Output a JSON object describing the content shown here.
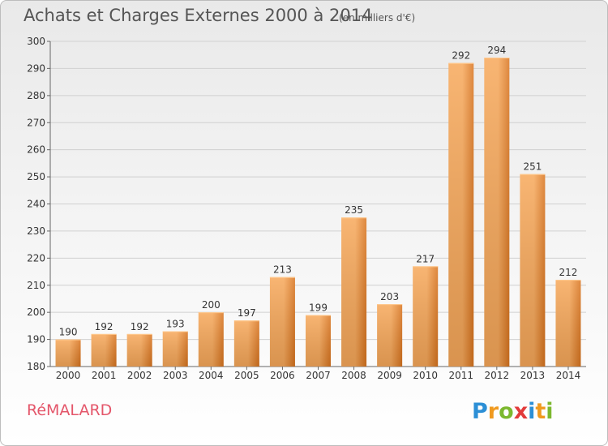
{
  "header": {
    "title": "Achats et Charges Externes 2000 à 2014",
    "subtitle": "(en milliers d'€)"
  },
  "footer": {
    "town": "RéMALARD",
    "logo": "Proxiti"
  },
  "colors": {
    "bar_light": "#f7a85a",
    "bar_dark": "#d9741e",
    "town": "#e4566a",
    "grid": "#d0d0d0"
  },
  "chart_data": {
    "type": "bar",
    "title": "Achats et Charges Externes 2000 à 2014",
    "subtitle": "(en milliers d'€)",
    "categories": [
      "2000",
      "2001",
      "2002",
      "2003",
      "2004",
      "2005",
      "2006",
      "2007",
      "2008",
      "2009",
      "2010",
      "2011",
      "2012",
      "2013",
      "2014"
    ],
    "values": [
      190,
      192,
      192,
      193,
      200,
      197,
      213,
      199,
      235,
      203,
      217,
      292,
      294,
      251,
      212
    ],
    "ylim": [
      180,
      300
    ],
    "yticks": [
      180,
      190,
      200,
      210,
      220,
      230,
      240,
      250,
      260,
      270,
      280,
      290,
      300
    ],
    "grid": true,
    "data_labels": true
  }
}
